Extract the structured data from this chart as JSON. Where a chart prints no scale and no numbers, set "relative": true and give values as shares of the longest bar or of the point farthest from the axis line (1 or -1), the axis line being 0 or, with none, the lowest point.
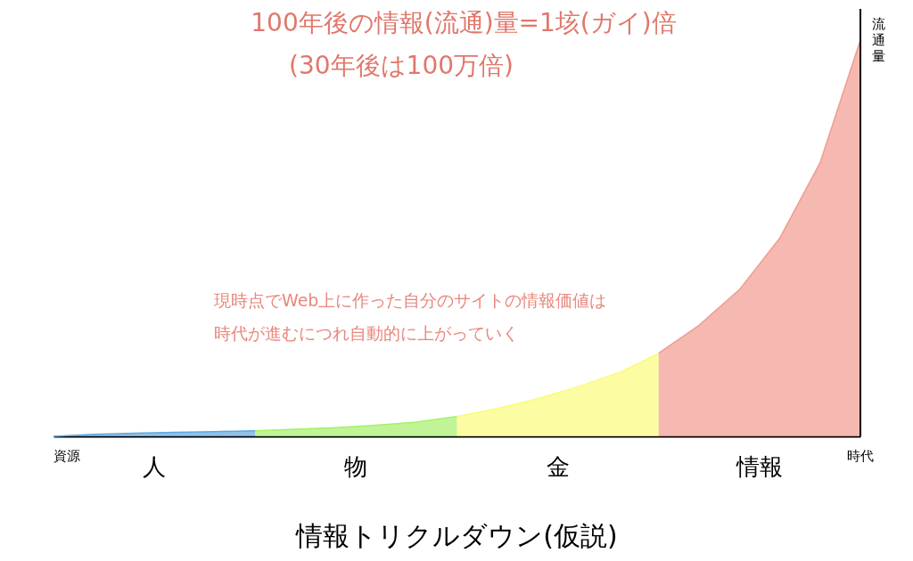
{
  "chart_data": {
    "type": "area",
    "relative": true,
    "title": "情報トリクルダウン(仮説)",
    "xlabel": "時代",
    "ylabel": "流通量",
    "legend": false,
    "grid": false,
    "categories": [
      null,
      null,
      null,
      null,
      null,
      null,
      null,
      null,
      null,
      null,
      null,
      null,
      null,
      null,
      null,
      null,
      null,
      null,
      null,
      null,
      null
    ],
    "series": [
      {
        "name": "人",
        "color": "#5fa8e0",
        "values": [
          0,
          0.005,
          0.008,
          0.01,
          0.012,
          0.014,
          null,
          null,
          null,
          null,
          null,
          null,
          null,
          null,
          null,
          null,
          null,
          null,
          null,
          null,
          null
        ]
      },
      {
        "name": "物",
        "color": "#a6f06a",
        "values": [
          null,
          null,
          null,
          null,
          null,
          0.014,
          0.018,
          0.022,
          0.028,
          0.036,
          0.05,
          null,
          null,
          null,
          null,
          null,
          null,
          null,
          null,
          null,
          null
        ]
      },
      {
        "name": "金",
        "color": "#fbfb7a",
        "values": [
          null,
          null,
          null,
          null,
          null,
          null,
          null,
          null,
          null,
          null,
          0.05,
          0.07,
          0.095,
          0.125,
          0.16,
          0.21,
          null,
          null,
          null,
          null,
          null
        ]
      },
      {
        "name": "情報",
        "color": "#f19b90",
        "values": [
          null,
          null,
          null,
          null,
          null,
          null,
          null,
          null,
          null,
          null,
          null,
          null,
          null,
          null,
          null,
          0.21,
          0.28,
          0.37,
          0.5,
          0.69,
          1.0
        ]
      }
    ],
    "annotations": [
      "100年後の情報(流通)量=1垓(ガイ)倍",
      "(30年後は100万倍)",
      "現時点でWeb上に作った自分のサイトの情報価値は",
      "時代が進むにつれ自動的に上がっていく",
      "資源"
    ]
  }
}
